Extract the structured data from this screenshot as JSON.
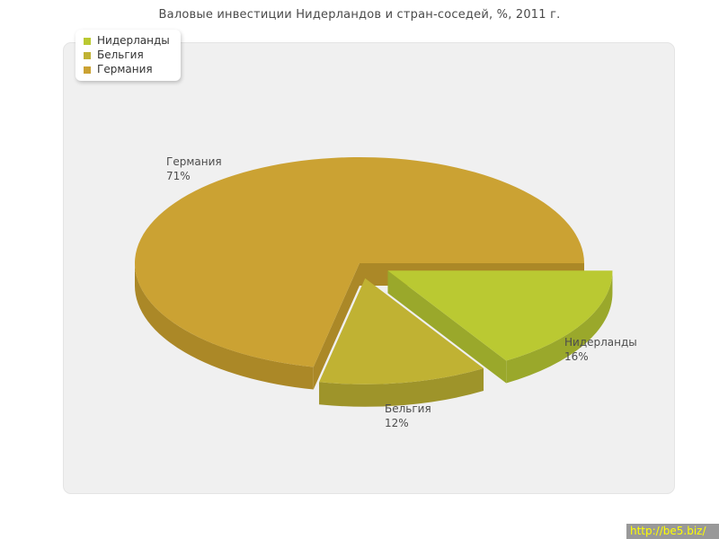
{
  "title": "Валовые инвестиции Нидерландов и стран-соседей, %, 2011 г.",
  "chart_data": {
    "type": "pie",
    "title": "Валовые инвестиции Нидерландов и стран-соседей, %, 2011 г.",
    "value_suffix": "%",
    "legend_position": "top-left",
    "style": "3d-exploded-pie",
    "slices": [
      {
        "id": "netherlands",
        "label": "Нидерланды",
        "value": 16,
        "color": "#bac932",
        "side_color": "#9aa82b",
        "pulled": true
      },
      {
        "id": "belgium",
        "label": "Бельгия",
        "value": 12,
        "color": "#c0b233",
        "side_color": "#9e942a",
        "pulled": true
      },
      {
        "id": "germany",
        "label": "Германия",
        "value": 71,
        "color": "#cba233",
        "side_color": "#ab8827",
        "pulled": false
      }
    ]
  },
  "footer_link": {
    "text": "http://be5.biz/",
    "bg": "#999999",
    "color": "#ffff00"
  }
}
